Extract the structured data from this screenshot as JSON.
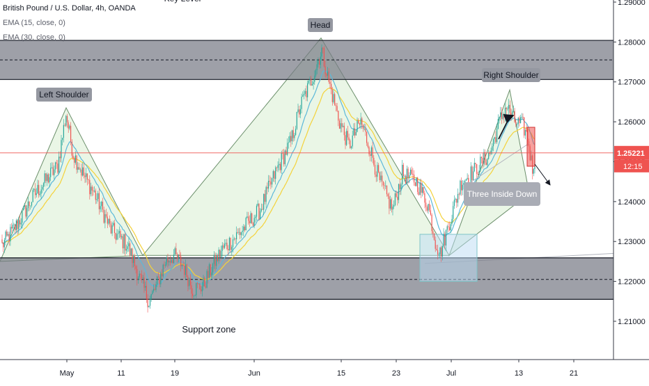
{
  "legend": {
    "symbol": "British Pound / U.S. Dollar, 4h, OANDA",
    "ema1": "EMA (15, close, 0)",
    "ema2": "EMA (30, close, 0)"
  },
  "chart_data": {
    "type": "candlestick",
    "price_axis": {
      "range": [
        1.2045,
        1.2925
      ],
      "ticks": [
        "1.29000",
        "1.28000",
        "1.27000",
        "1.26000",
        "1.25000",
        "1.24000",
        "1.23000",
        "1.22000",
        "1.21000"
      ],
      "last_price": "1.25221",
      "countdown": "12:15"
    },
    "time_axis": {
      "labels": [
        "May",
        "11",
        "19",
        "Jun",
        "15",
        "23",
        "Jul",
        "13",
        "21"
      ]
    },
    "zones": [
      {
        "label": "Key Level",
        "top": 1.2804,
        "bottom": 1.2706,
        "mid": 1.2755
      },
      {
        "label": "Support zone",
        "top": 1.2259,
        "bottom": 1.2155,
        "mid": 1.2205
      }
    ],
    "annotations": {
      "left_shoulder": "Left Shoulder",
      "head": "Head",
      "right_shoulder": "Right Shoulder",
      "pattern": "Three Inside Down",
      "key_level": "Key Level",
      "support_zone": "Support zone"
    },
    "colors": {
      "up": "#26a69a",
      "down": "#ef5350",
      "ema15": "#5bb8d9",
      "ema30": "#f4d23a",
      "zone": "#787b86",
      "triangle_fill": "#e3f3de"
    }
  }
}
